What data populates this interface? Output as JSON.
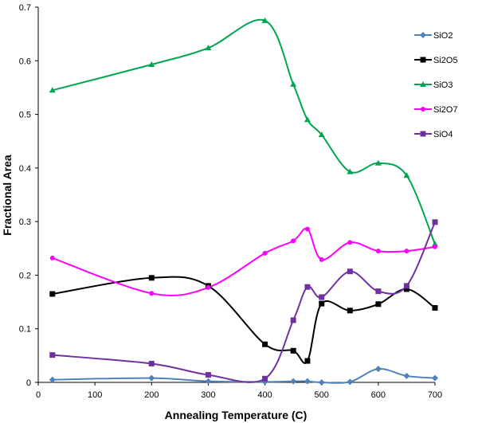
{
  "chart_data": {
    "type": "line",
    "title": "",
    "xlabel": "Annealing Temperature (C)",
    "ylabel": "Fractional  Area",
    "xlim": [
      0,
      700
    ],
    "ylim": [
      0,
      0.7
    ],
    "xticks": [
      0,
      100,
      200,
      300,
      400,
      500,
      600,
      700
    ],
    "yticks": [
      0,
      0.1,
      0.2,
      0.3,
      0.4,
      0.5,
      0.6,
      0.7
    ],
    "xtick_labels": [
      "0",
      "100",
      "200",
      "300",
      "400",
      "500",
      "600",
      "700"
    ],
    "ytick_labels": [
      "0",
      "0.1",
      "0.2",
      "0.3",
      "0.4",
      "0.5",
      "0.6",
      "0.7"
    ],
    "grid": false,
    "legend_position": "right",
    "series": [
      {
        "name": "SiO2",
        "color": "#4f81bd",
        "marker": "diamond",
        "x": [
          25,
          200,
          300,
          400,
          450,
          475,
          500,
          550,
          600,
          650,
          700
        ],
        "y": [
          0.005,
          0.008,
          0.002,
          0.001,
          0.002,
          0.002,
          0.0,
          0.001,
          0.025,
          0.012,
          0.008
        ]
      },
      {
        "name": "Si2O5",
        "color": "#000000",
        "marker": "square",
        "x": [
          25,
          200,
          300,
          400,
          450,
          475,
          500,
          550,
          600,
          650,
          700
        ],
        "y": [
          0.165,
          0.195,
          0.18,
          0.071,
          0.059,
          0.04,
          0.147,
          0.134,
          0.146,
          0.174,
          0.139
        ]
      },
      {
        "name": "SiO3",
        "color": "#00a650",
        "marker": "triangle",
        "x": [
          25,
          200,
          300,
          400,
          450,
          475,
          500,
          550,
          600,
          650,
          700
        ],
        "y": [
          0.545,
          0.593,
          0.624,
          0.675,
          0.556,
          0.49,
          0.462,
          0.393,
          0.409,
          0.386,
          0.258
        ]
      },
      {
        "name": "Si2O7",
        "color": "#ff00ff",
        "marker": "circle",
        "x": [
          25,
          200,
          300,
          400,
          450,
          475,
          500,
          550,
          600,
          650,
          700
        ],
        "y": [
          0.232,
          0.166,
          0.177,
          0.241,
          0.264,
          0.286,
          0.229,
          0.261,
          0.245,
          0.245,
          0.253
        ]
      },
      {
        "name": "SiO4",
        "color": "#7030a0",
        "marker": "square",
        "x": [
          25,
          200,
          300,
          400,
          450,
          475,
          500,
          550,
          600,
          650,
          700
        ],
        "y": [
          0.051,
          0.035,
          0.014,
          0.007,
          0.116,
          0.178,
          0.159,
          0.207,
          0.17,
          0.18,
          0.299
        ]
      }
    ]
  }
}
